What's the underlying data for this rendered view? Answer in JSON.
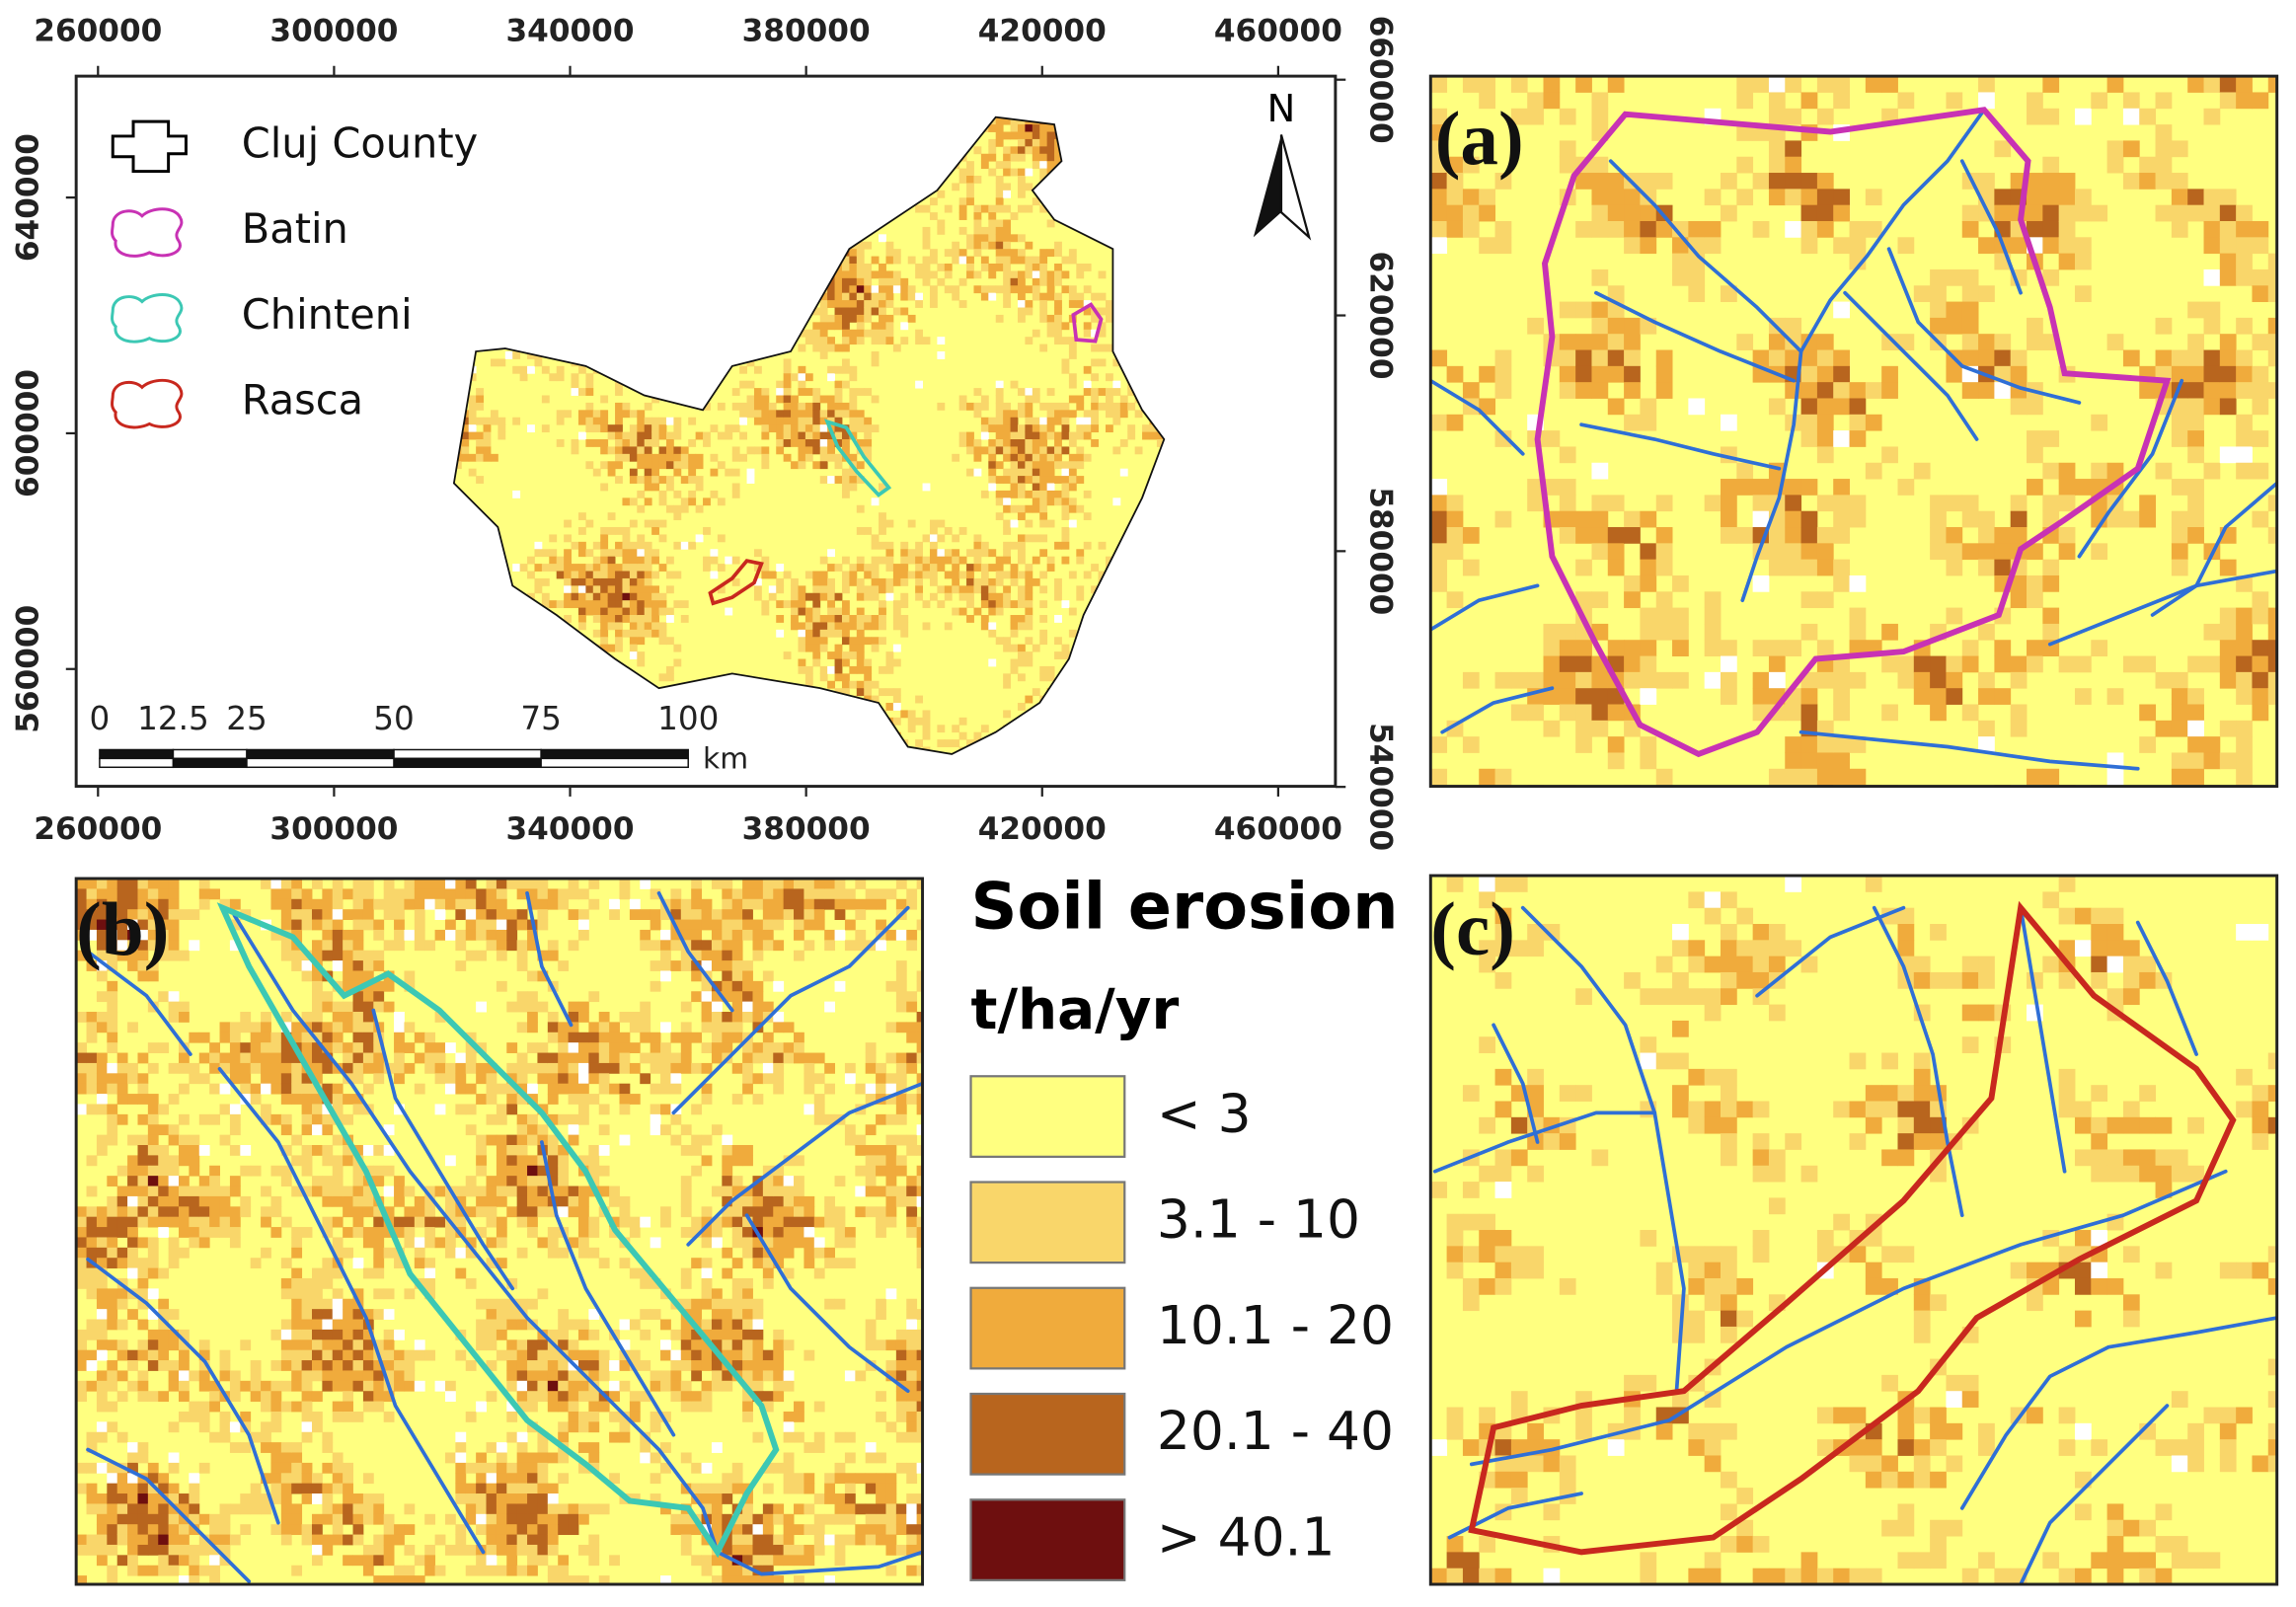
{
  "main_map": {
    "xlim": [
      256300,
      469700
    ],
    "ylim": [
      540100,
      660600
    ],
    "xticks": [
      260000,
      300000,
      340000,
      380000,
      420000,
      460000
    ],
    "yticks_left": [
      560000,
      600000,
      640000
    ],
    "yticks_right": [
      540000,
      580000,
      620000,
      660000
    ],
    "north": "N",
    "legend": [
      {
        "name": "Cluj County",
        "color": "#000000"
      },
      {
        "name": "Batin",
        "color": "#c832b4"
      },
      {
        "name": "Chinteni",
        "color": "#3cc8b4"
      },
      {
        "name": "Rasca",
        "color": "#c8281e"
      }
    ],
    "scale_bar": {
      "labels": [
        0,
        12.5,
        25,
        50,
        75,
        100
      ],
      "unit": "km"
    }
  },
  "panels": [
    "(a)",
    "(b)",
    "(c)"
  ],
  "erosion_legend": {
    "title": "Soil erosion",
    "unit": "t/ha/yr",
    "classes": [
      {
        "label": "< 3",
        "color": "#ffff80"
      },
      {
        "label": "3.1 - 10",
        "color": "#f9d66a"
      },
      {
        "label": "10.1 - 20",
        "color": "#f0ab3c"
      },
      {
        "label": "20.1 - 40",
        "color": "#b8651e"
      },
      {
        "label": "> 40.1",
        "color": "#6e0f0f"
      }
    ]
  }
}
